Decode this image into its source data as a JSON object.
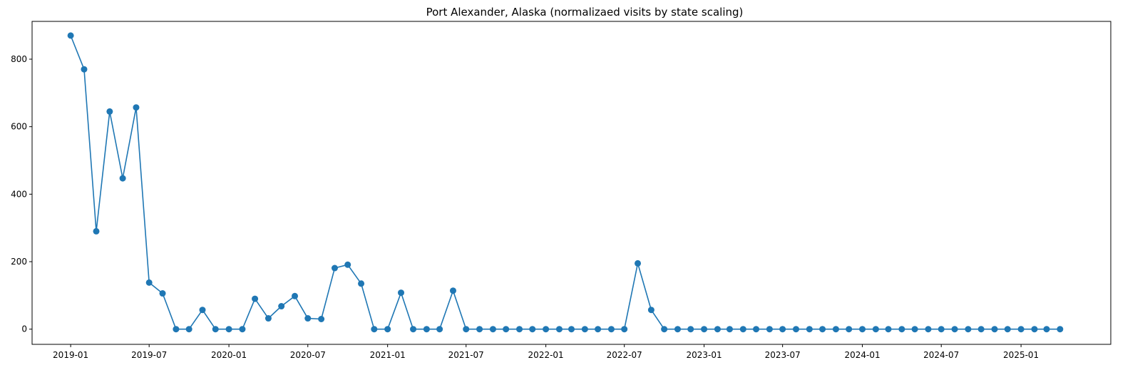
{
  "chart_data": {
    "type": "line",
    "title": "Port Alexander, Alaska (normalizaed visits by state scaling)",
    "xlabel": "",
    "ylabel": "",
    "color": "#1f77b4",
    "marker": "circle",
    "grid": false,
    "legend": "none",
    "ylim": [
      -45,
      912
    ],
    "xlim": [
      "2018-10-04",
      "2025-07-27"
    ],
    "yticks": [
      0,
      200,
      400,
      600,
      800
    ],
    "xticks": [
      "2019-01",
      "2019-07",
      "2020-01",
      "2020-07",
      "2021-01",
      "2021-07",
      "2022-01",
      "2022-07",
      "2023-01",
      "2023-07",
      "2024-01",
      "2024-07",
      "2025-01"
    ],
    "series": [
      {
        "x": [
          "2019-01",
          "2019-02",
          "2019-03",
          "2019-04",
          "2019-05",
          "2019-06",
          "2019-07",
          "2019-08",
          "2019-09",
          "2019-10",
          "2019-11",
          "2019-12",
          "2020-01",
          "2020-02",
          "2020-03",
          "2020-04",
          "2020-05",
          "2020-06",
          "2020-07",
          "2020-08",
          "2020-09",
          "2020-10",
          "2020-11",
          "2020-12",
          "2021-01",
          "2021-02",
          "2021-03",
          "2021-04",
          "2021-05",
          "2021-06",
          "2021-07",
          "2021-08",
          "2021-09",
          "2021-10",
          "2021-11",
          "2021-12",
          "2022-01",
          "2022-02",
          "2022-03",
          "2022-04",
          "2022-05",
          "2022-06",
          "2022-07",
          "2022-08",
          "2022-09",
          "2022-10",
          "2022-11",
          "2022-12",
          "2023-01",
          "2023-02",
          "2023-03",
          "2023-04",
          "2023-05",
          "2023-06",
          "2023-07",
          "2023-08",
          "2023-09",
          "2023-10",
          "2023-11",
          "2023-12",
          "2024-01",
          "2024-02",
          "2024-03",
          "2024-04",
          "2024-05",
          "2024-06",
          "2024-07",
          "2024-08",
          "2024-09",
          "2024-10",
          "2024-11",
          "2024-12",
          "2025-01",
          "2025-02",
          "2025-03",
          "2025-04"
        ],
        "y": [
          870,
          770,
          290,
          645,
          447,
          657,
          138,
          106,
          0,
          0,
          57,
          0,
          0,
          0,
          90,
          32,
          68,
          98,
          32,
          30,
          181,
          191,
          135,
          0,
          0,
          108,
          0,
          0,
          0,
          114,
          0,
          0,
          0,
          0,
          0,
          0,
          0,
          0,
          0,
          0,
          0,
          0,
          0,
          195,
          57,
          0,
          0,
          0,
          0,
          0,
          0,
          0,
          0,
          0,
          0,
          0,
          0,
          0,
          0,
          0,
          0,
          0,
          0,
          0,
          0,
          0,
          0,
          0,
          0,
          0,
          0,
          0,
          0,
          0,
          0,
          0
        ]
      }
    ]
  }
}
